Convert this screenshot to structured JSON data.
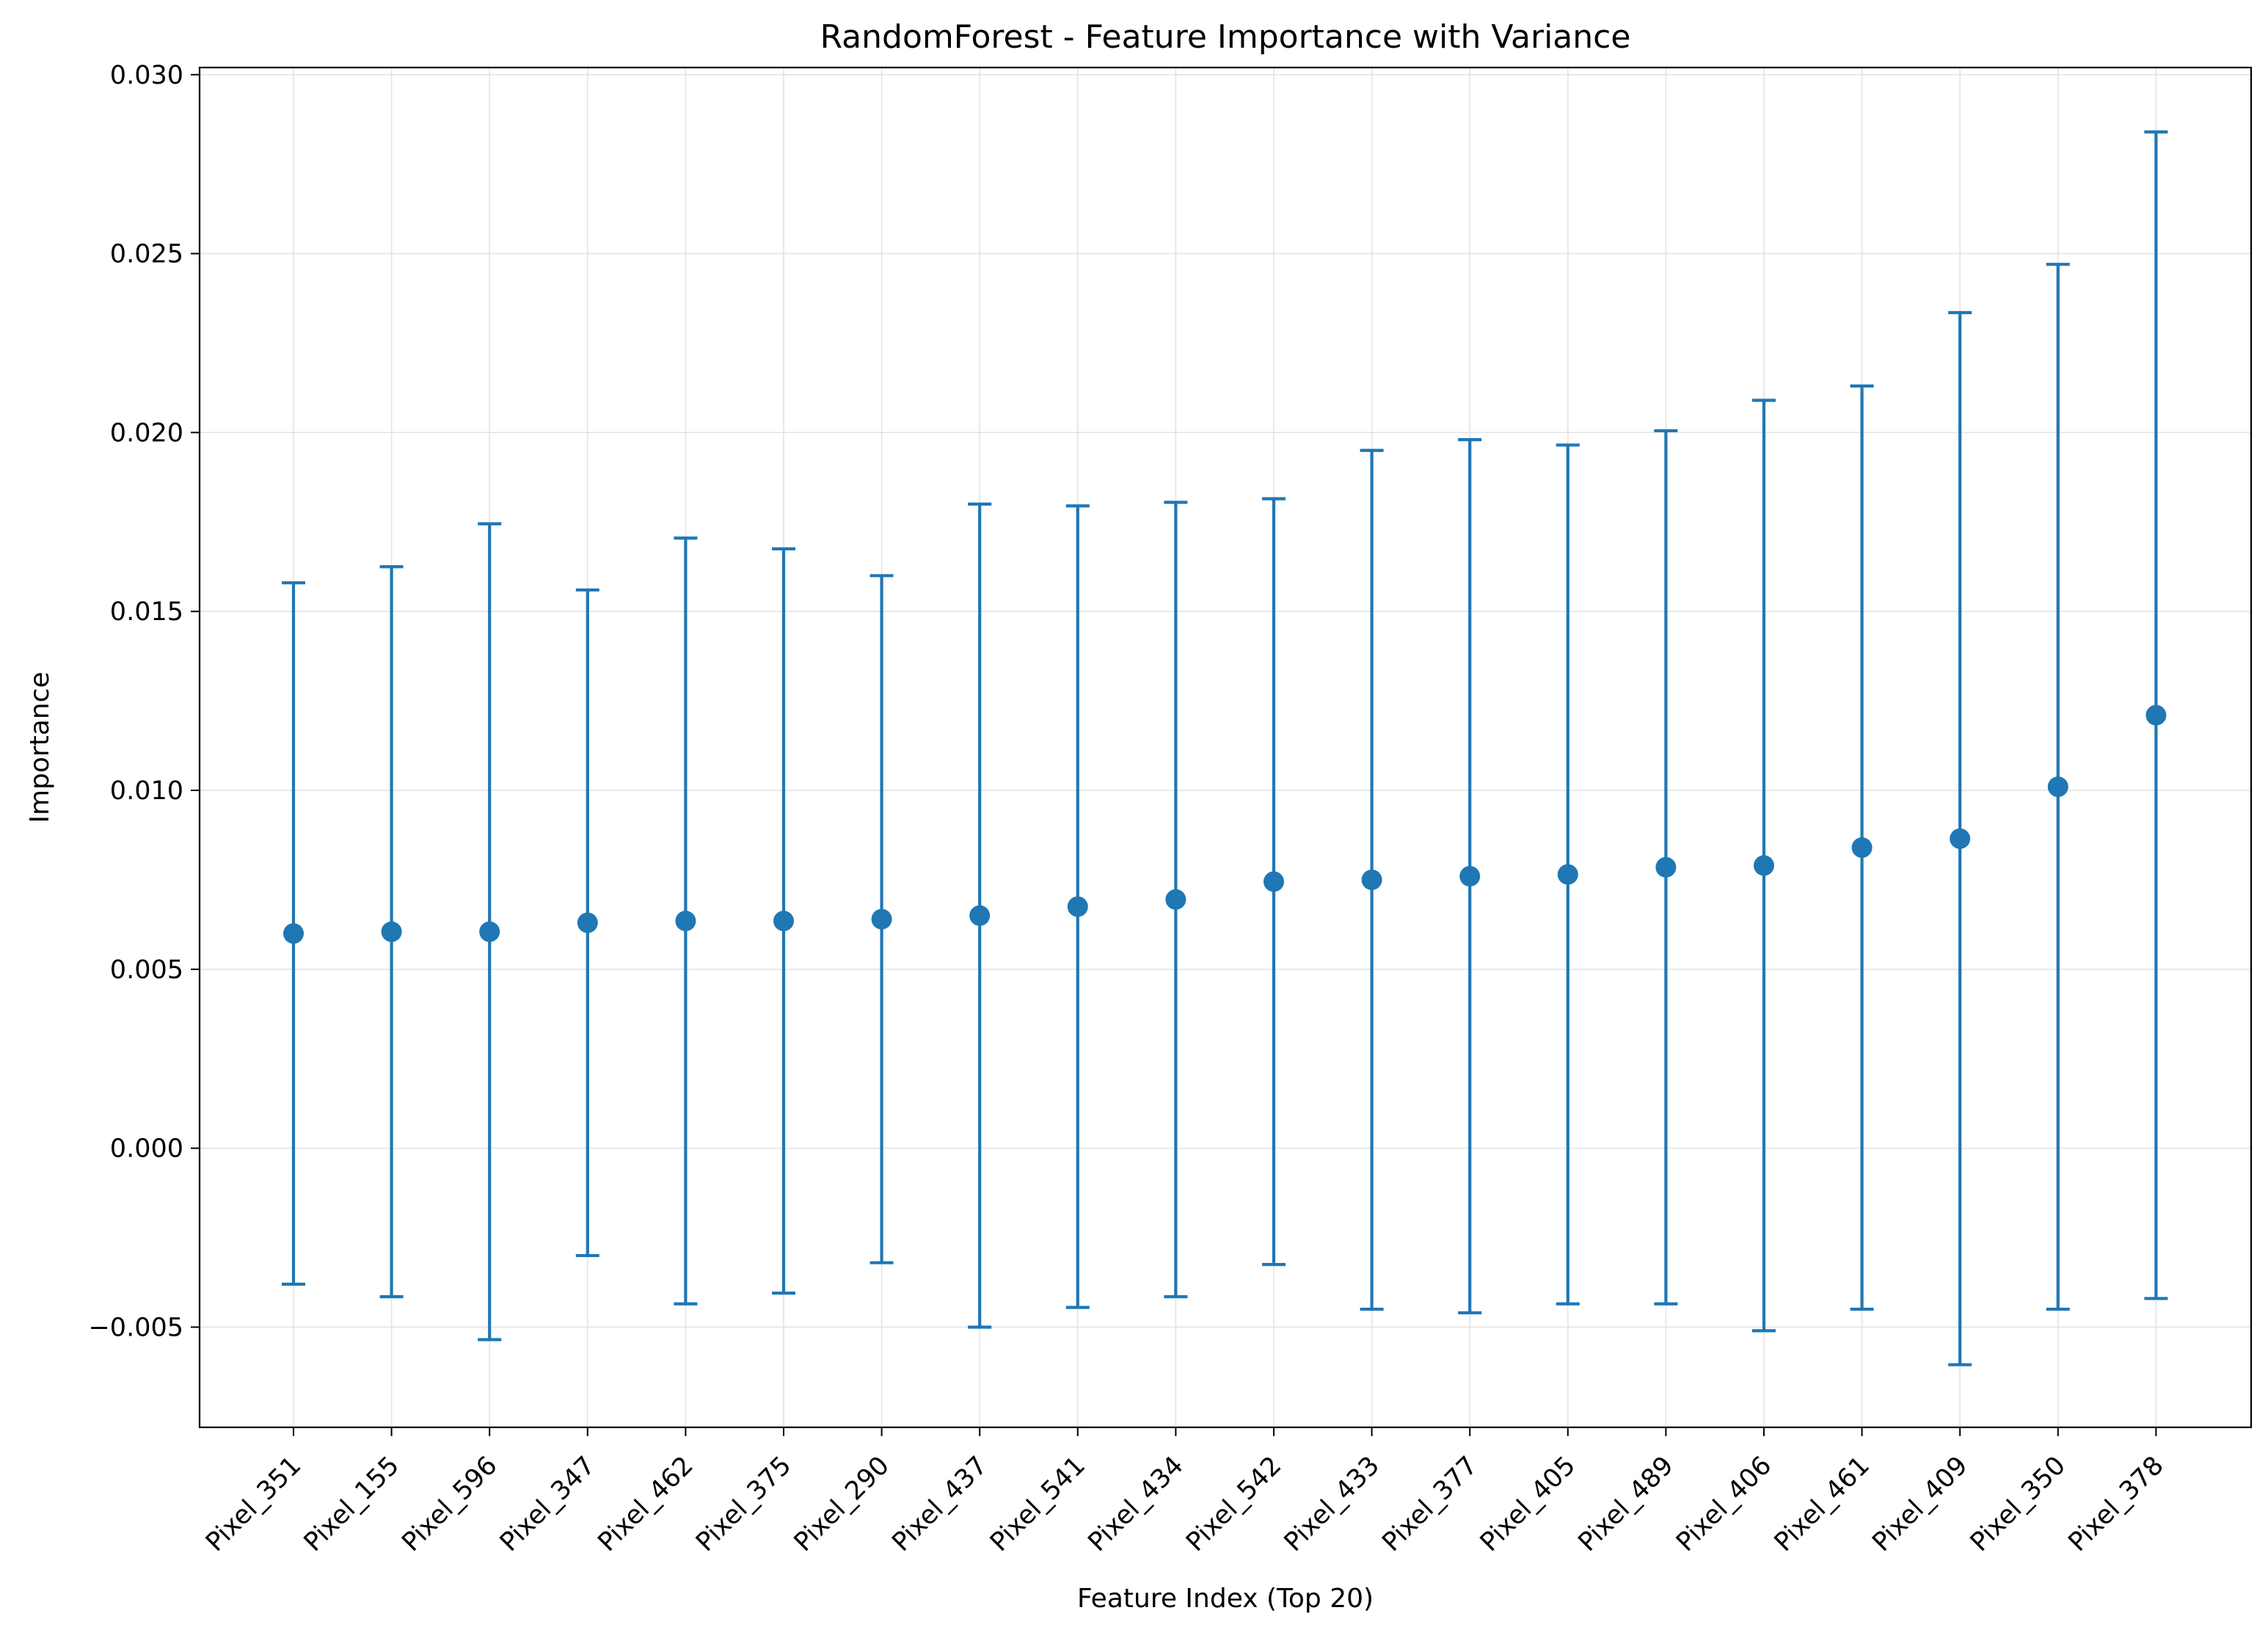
{
  "chart_data": {
    "type": "scatter",
    "title": "RandomForest - Feature Importance with Variance",
    "xlabel": "Feature Index (Top 20)",
    "ylabel": "Importance",
    "ylim": [
      -0.0078,
      0.0302
    ],
    "yticks": [
      -0.005,
      0.0,
      0.005,
      0.01,
      0.015,
      0.02,
      0.025,
      0.03
    ],
    "ytick_labels": [
      "−0.005",
      "0.000",
      "0.005",
      "0.010",
      "0.015",
      "0.020",
      "0.025",
      "0.030"
    ],
    "grid": true,
    "color": "#1f77b4",
    "categories": [
      "Pixel_351",
      "Pixel_155",
      "Pixel_596",
      "Pixel_347",
      "Pixel_462",
      "Pixel_375",
      "Pixel_290",
      "Pixel_437",
      "Pixel_541",
      "Pixel_434",
      "Pixel_542",
      "Pixel_433",
      "Pixel_377",
      "Pixel_405",
      "Pixel_489",
      "Pixel_406",
      "Pixel_461",
      "Pixel_409",
      "Pixel_350",
      "Pixel_378"
    ],
    "values": [
      0.006,
      0.00605,
      0.00605,
      0.0063,
      0.00635,
      0.00635,
      0.0064,
      0.0065,
      0.00675,
      0.00695,
      0.00745,
      0.0075,
      0.0076,
      0.00765,
      0.00785,
      0.0079,
      0.0084,
      0.00865,
      0.0101,
      0.0121
    ],
    "errors": [
      0.0098,
      0.0102,
      0.0114,
      0.0093,
      0.0107,
      0.0104,
      0.0096,
      0.0115,
      0.0112,
      0.0111,
      0.0107,
      0.012,
      0.0122,
      0.012,
      0.0122,
      0.013,
      0.0129,
      0.0147,
      0.0146,
      0.0163
    ]
  }
}
